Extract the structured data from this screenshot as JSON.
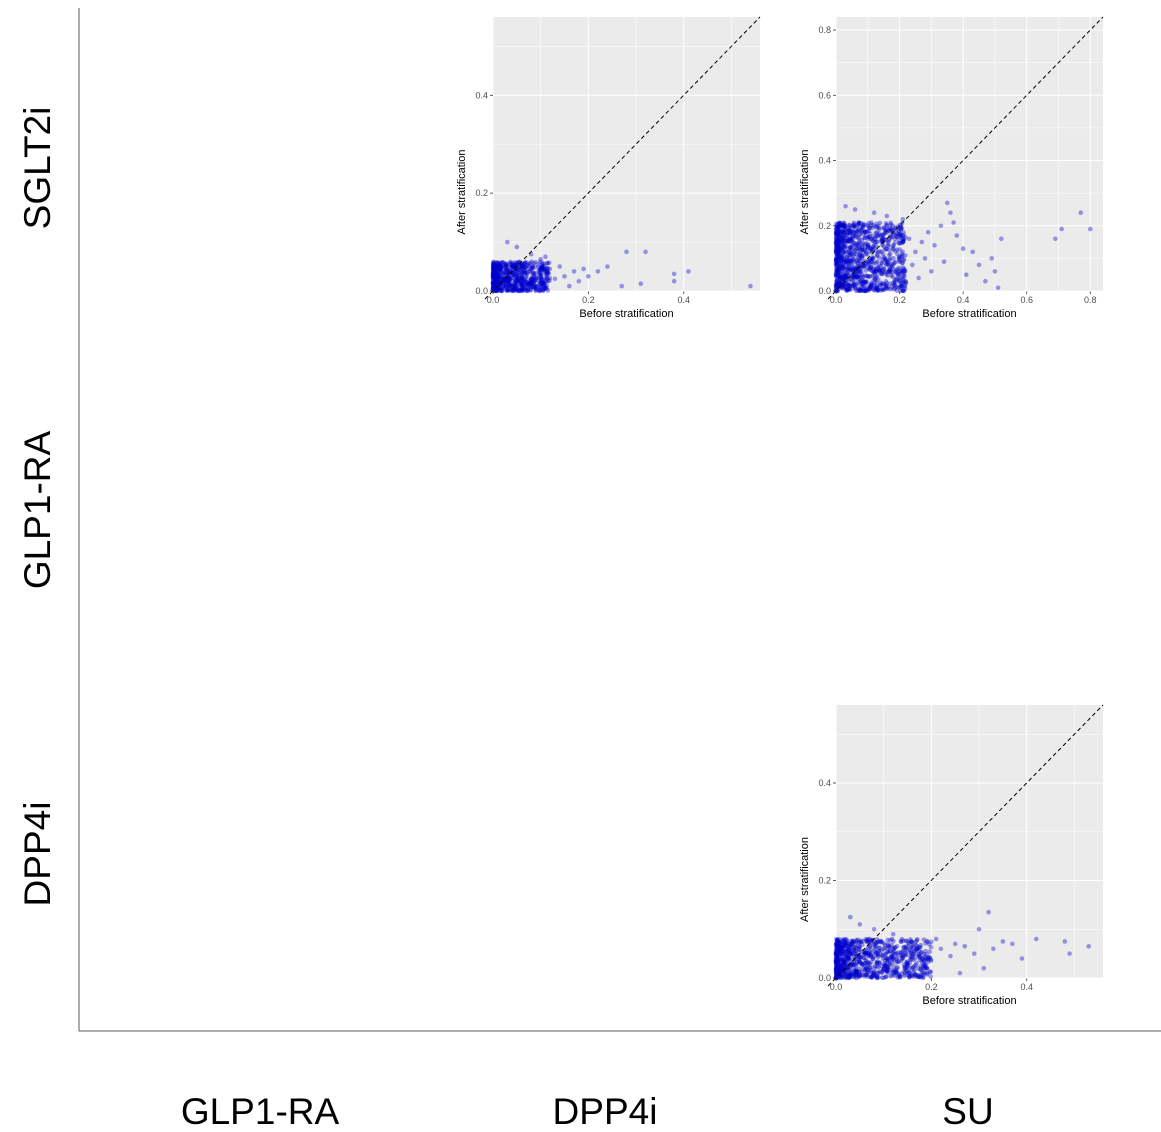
{
  "layout": {
    "row_labels": [
      "SGLT2i",
      "GLP1-RA",
      "DPP4i"
    ],
    "col_labels": [
      "GLP1-RA",
      "DPP4i",
      "SU"
    ]
  },
  "colors": {
    "panel_bg": "#ebebeb",
    "grid": "#ffffff",
    "point": "#0000cd",
    "diagonal": "#000000",
    "frame": "#7f7f7f"
  },
  "chart_data": [
    {
      "type": "scatter",
      "row": "SGLT2i",
      "col": "DPP4i",
      "xlabel": "Before stratification",
      "ylabel": "After stratification",
      "xlim": [
        0,
        0.56
      ],
      "ylim": [
        0,
        0.56
      ],
      "xticks": [
        "0.0",
        "0.2",
        "0.4"
      ],
      "yticks": [
        "0.0",
        "0.2",
        "0.4"
      ],
      "reference_line": "y = x",
      "cluster": {
        "x_max": 0.12,
        "y_max": 0.06,
        "n": 650
      },
      "outliers": [
        [
          0.54,
          0.01
        ],
        [
          0.41,
          0.04
        ],
        [
          0.38,
          0.02
        ],
        [
          0.38,
          0.035
        ],
        [
          0.32,
          0.08
        ],
        [
          0.31,
          0.015
        ],
        [
          0.28,
          0.08
        ],
        [
          0.27,
          0.01
        ],
        [
          0.24,
          0.05
        ],
        [
          0.22,
          0.04
        ],
        [
          0.2,
          0.03
        ],
        [
          0.19,
          0.045
        ],
        [
          0.18,
          0.02
        ],
        [
          0.17,
          0.04
        ],
        [
          0.16,
          0.01
        ],
        [
          0.15,
          0.03
        ],
        [
          0.14,
          0.05
        ],
        [
          0.13,
          0.025
        ],
        [
          0.11,
          0.07
        ],
        [
          0.05,
          0.09
        ],
        [
          0.03,
          0.1
        ],
        [
          0.08,
          0.075
        ],
        [
          0.1,
          0.065
        ]
      ]
    },
    {
      "type": "scatter",
      "row": "SGLT2i",
      "col": "SU",
      "xlabel": "Before stratification",
      "ylabel": "After stratification",
      "xlim": [
        0,
        0.84
      ],
      "ylim": [
        0,
        0.84
      ],
      "xticks": [
        "0.0",
        "0.2",
        "0.4",
        "0.6",
        "0.8"
      ],
      "yticks": [
        "0.0",
        "0.2",
        "0.4",
        "0.6",
        "0.8"
      ],
      "reference_line": "y = x",
      "cluster": {
        "x_max": 0.22,
        "y_max": 0.21,
        "n": 1000
      },
      "outliers": [
        [
          0.8,
          0.19
        ],
        [
          0.77,
          0.24
        ],
        [
          0.71,
          0.19
        ],
        [
          0.69,
          0.16
        ],
        [
          0.52,
          0.16
        ],
        [
          0.51,
          0.01
        ],
        [
          0.5,
          0.06
        ],
        [
          0.49,
          0.1
        ],
        [
          0.47,
          0.03
        ],
        [
          0.45,
          0.08
        ],
        [
          0.43,
          0.12
        ],
        [
          0.41,
          0.05
        ],
        [
          0.4,
          0.13
        ],
        [
          0.38,
          0.17
        ],
        [
          0.37,
          0.21
        ],
        [
          0.36,
          0.24
        ],
        [
          0.35,
          0.27
        ],
        [
          0.34,
          0.09
        ],
        [
          0.33,
          0.2
        ],
        [
          0.31,
          0.14
        ],
        [
          0.3,
          0.06
        ],
        [
          0.29,
          0.18
        ],
        [
          0.28,
          0.1
        ],
        [
          0.27,
          0.15
        ],
        [
          0.26,
          0.04
        ],
        [
          0.25,
          0.12
        ],
        [
          0.24,
          0.08
        ],
        [
          0.23,
          0.16
        ],
        [
          0.21,
          0.22
        ],
        [
          0.16,
          0.23
        ],
        [
          0.12,
          0.24
        ],
        [
          0.06,
          0.25
        ],
        [
          0.03,
          0.26
        ]
      ]
    },
    {
      "type": "scatter",
      "row": "DPP4i",
      "col": "SU",
      "xlabel": "Before stratification",
      "ylabel": "After stratification",
      "xlim": [
        0,
        0.56
      ],
      "ylim": [
        0,
        0.56
      ],
      "xticks": [
        "0.0",
        "0.2",
        "0.4"
      ],
      "yticks": [
        "0.0",
        "0.2",
        "0.4"
      ],
      "reference_line": "y = x",
      "cluster": {
        "x_max": 0.2,
        "y_max": 0.08,
        "n": 800
      },
      "outliers": [
        [
          0.53,
          0.065
        ],
        [
          0.49,
          0.05
        ],
        [
          0.48,
          0.075
        ],
        [
          0.42,
          0.08
        ],
        [
          0.39,
          0.04
        ],
        [
          0.37,
          0.07
        ],
        [
          0.35,
          0.075
        ],
        [
          0.33,
          0.06
        ],
        [
          0.32,
          0.135
        ],
        [
          0.31,
          0.02
        ],
        [
          0.3,
          0.1
        ],
        [
          0.29,
          0.05
        ],
        [
          0.27,
          0.065
        ],
        [
          0.26,
          0.01
        ],
        [
          0.25,
          0.07
        ],
        [
          0.24,
          0.045
        ],
        [
          0.22,
          0.06
        ],
        [
          0.21,
          0.08
        ],
        [
          0.05,
          0.11
        ],
        [
          0.03,
          0.125
        ],
        [
          0.08,
          0.1
        ],
        [
          0.12,
          0.09
        ]
      ]
    }
  ]
}
